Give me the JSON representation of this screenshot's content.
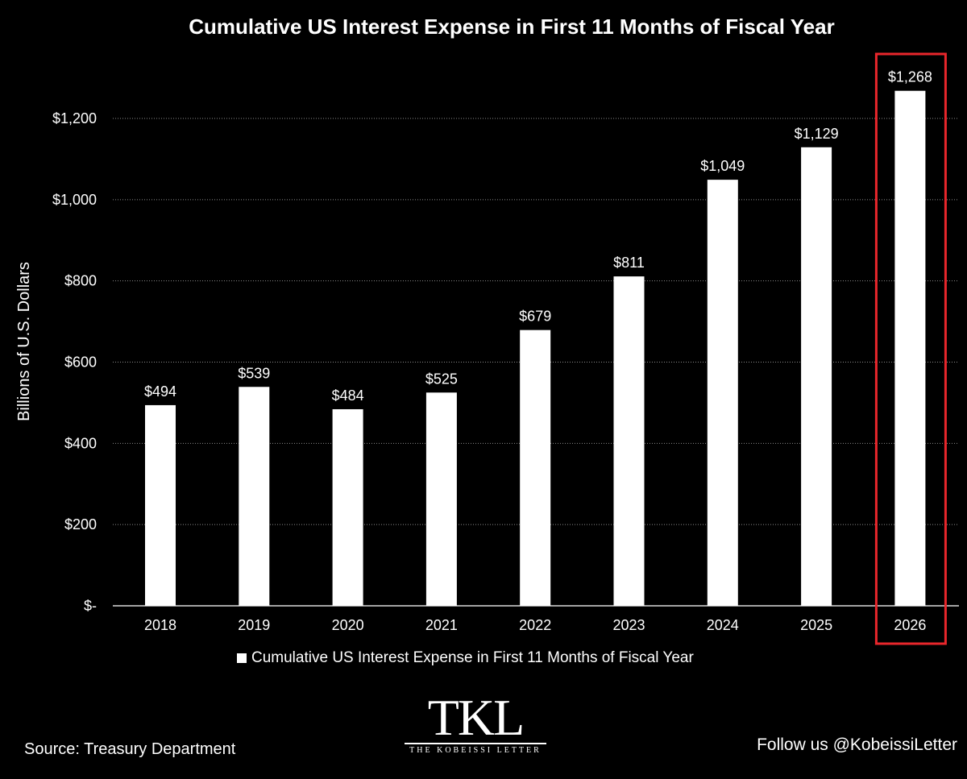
{
  "header": {
    "title": "Cumulative US Interest Expense in First 11 Months of Fiscal Year"
  },
  "chart_data": {
    "type": "bar",
    "title": "Cumulative US Interest Expense in First 11 Months of Fiscal Year",
    "xlabel": "",
    "ylabel": "Billions of U.S. Dollars",
    "categories": [
      "2018",
      "2019",
      "2020",
      "2021",
      "2022",
      "2023",
      "2024",
      "2025",
      "2026"
    ],
    "series": [
      {
        "name": "Cumulative US Interest Expense in First 11 Months of Fiscal Year",
        "values": [
          494,
          539,
          484,
          525,
          679,
          811,
          1049,
          1129,
          1268
        ],
        "labels": [
          "$494",
          "$539",
          "$484",
          "$525",
          "$679",
          "$811",
          "$1,049",
          "$1,129",
          "$1,268"
        ]
      }
    ],
    "ylim": [
      0,
      1300
    ],
    "yticks": [
      0,
      200,
      400,
      600,
      800,
      1000,
      1200
    ],
    "ytick_labels": [
      "$-",
      "$200",
      "$400",
      "$600",
      "$800",
      "$1,000",
      "$1,200"
    ],
    "grid": true,
    "legend": "bottom",
    "highlight": {
      "category": "2026",
      "color": "#e8262b"
    },
    "bar_color": "#ffffff",
    "background": "#000000"
  },
  "legend": {
    "label": "Cumulative US Interest Expense in First 11 Months of Fiscal Year"
  },
  "footer": {
    "source": "Source: Treasury Department",
    "follow": "Follow us @KobeissiLetter",
    "logo_mark": "TKL",
    "logo_sub": "THE KOBEISSI LETTER"
  }
}
